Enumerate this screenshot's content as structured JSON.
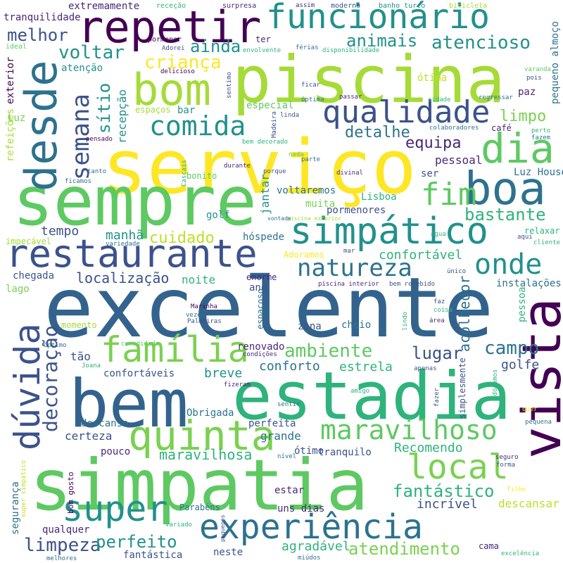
{
  "words": [
    {
      "text": "excelente",
      "color": "#33638d"
    },
    {
      "text": "serviço",
      "color": "#fde725"
    },
    {
      "text": "estadia",
      "color": "#2eb37c"
    },
    {
      "text": "simpatia",
      "color": "#5ec962"
    },
    {
      "text": "piscina",
      "color": "#a5db36"
    },
    {
      "text": "sempre",
      "color": "#5ec962"
    },
    {
      "text": "bem",
      "color": "#33638d"
    },
    {
      "text": "restaurante",
      "color": "#3b528b"
    },
    {
      "text": "experiência",
      "color": "#2c728e"
    },
    {
      "text": "vista",
      "color": "#440154"
    },
    {
      "text": "repetir",
      "color": "#440154"
    },
    {
      "text": "funcionário",
      "color": "#21918c"
    },
    {
      "text": "simpático",
      "color": "#21918c"
    },
    {
      "text": "dúvida",
      "color": "#3b528b"
    },
    {
      "text": "boa",
      "color": "#2c728e"
    },
    {
      "text": "desde",
      "color": "#2c728e"
    },
    {
      "text": "bom",
      "color": "#a5db36"
    },
    {
      "text": "quinta",
      "color": "#7ad151"
    },
    {
      "text": "dia",
      "color": "#5ec962"
    },
    {
      "text": "qualidade",
      "color": "#3b528b"
    },
    {
      "text": "família",
      "color": "#7ad151"
    },
    {
      "text": "local",
      "color": "#7ad151"
    },
    {
      "text": "super",
      "color": "#21918c"
    },
    {
      "text": "maravilhoso",
      "color": "#5ec962"
    },
    {
      "text": "comida",
      "color": "#21918c"
    },
    {
      "text": "natureza",
      "color": "#2c728e"
    },
    {
      "text": "onde",
      "color": "#21918c"
    },
    {
      "text": "semana",
      "color": "#3b528b"
    },
    {
      "text": "fim",
      "color": "#5ec962"
    },
    {
      "text": "decoração",
      "color": "#3b528b"
    },
    {
      "text": "voltar",
      "color": "#21918c"
    },
    {
      "text": "animais",
      "color": "#21918c"
    },
    {
      "text": "atencioso",
      "color": "#21918c"
    },
    {
      "text": "criança",
      "color": "#fde725"
    },
    {
      "text": "ainda",
      "color": "#21918c"
    },
    {
      "text": "melhor",
      "color": "#3b528b"
    },
    {
      "text": "sítio",
      "color": "#21918c"
    },
    {
      "text": "recepção",
      "color": "#21918c"
    },
    {
      "text": "equipa",
      "color": "#482878"
    },
    {
      "text": "detalhe",
      "color": "#2c728e"
    },
    {
      "text": "limpo",
      "color": "#7ad151"
    },
    {
      "text": "ambiente",
      "color": "#5ec962"
    },
    {
      "text": "campo",
      "color": "#2c728e"
    },
    {
      "text": "lugar",
      "color": "#3b528b"
    },
    {
      "text": "limpeza",
      "color": "#3b528b"
    },
    {
      "text": "perfeito",
      "color": "#21918c"
    },
    {
      "text": "atendimento",
      "color": "#7ad151"
    },
    {
      "text": "fantástico",
      "color": "#2eb37c"
    },
    {
      "text": "bastante",
      "color": "#2eb37c"
    },
    {
      "text": "cuidado",
      "color": "#bddf26"
    },
    {
      "text": "Recomendo",
      "color": "#2eb37c"
    },
    {
      "text": "maravilhosa",
      "color": "#2eb37c"
    },
    {
      "text": "localização",
      "color": "#3b528b"
    },
    {
      "text": "confortável",
      "color": "#2eb37c"
    },
    {
      "text": "acolhedor",
      "color": "#2c728e"
    },
    {
      "text": "golfe",
      "color": "#3b528b"
    },
    {
      "text": "conforto",
      "color": "#2c728e"
    },
    {
      "text": "estrela",
      "color": "#2eb37c"
    },
    {
      "text": "breve",
      "color": "#21918c"
    },
    {
      "text": "incrível",
      "color": "#3b528b"
    },
    {
      "text": "agradável",
      "color": "#2eb37c"
    },
    {
      "text": "descansar",
      "color": "#bddf26"
    },
    {
      "text": "tempo",
      "color": "#3b528b"
    },
    {
      "text": "manhã",
      "color": "#21918c"
    },
    {
      "text": "jantar",
      "color": "#21918c"
    },
    {
      "text": "pessoal",
      "color": "#482878"
    },
    {
      "text": "Luz House",
      "color": "#2c728e"
    },
    {
      "text": "Lisboa",
      "color": "#2eb37c"
    },
    {
      "text": "pormenores",
      "color": "#3b528b"
    },
    {
      "text": "voltaremos",
      "color": "#2c728e"
    },
    {
      "text": "muita",
      "color": "#7ad151"
    },
    {
      "text": "golf",
      "color": "#21918c"
    },
    {
      "text": "ser",
      "color": "#3b528b"
    },
    {
      "text": "bar",
      "color": "#21918c"
    },
    {
      "text": "especial",
      "color": "#5ec962"
    },
    {
      "text": "ótima",
      "color": "#bddf26"
    },
    {
      "text": "atenção",
      "color": "#21918c"
    },
    {
      "text": "paz",
      "color": "#482878"
    },
    {
      "text": "café",
      "color": "#482878"
    },
    {
      "text": "pequeno almoço",
      "color": "#2c728e"
    },
    {
      "text": "noite",
      "color": "#2eb37c"
    },
    {
      "text": "lago",
      "color": "#7ad151"
    },
    {
      "text": "chegada",
      "color": "#3b528b"
    },
    {
      "text": "ano",
      "color": "#3b528b"
    },
    {
      "text": "enorme",
      "color": "#482878"
    },
    {
      "text": "espaçoso",
      "color": "#2c728e"
    },
    {
      "text": "zona",
      "color": "#3b528b"
    },
    {
      "text": "cheio",
      "color": "#2c728e"
    },
    {
      "text": "renovado",
      "color": "#482878"
    },
    {
      "text": "segurança",
      "color": "#2c728e"
    },
    {
      "text": "certeza",
      "color": "#3b528b"
    },
    {
      "text": "grande",
      "color": "#2c728e"
    },
    {
      "text": "tranquilo",
      "color": "#3b528b"
    },
    {
      "text": "perfeita",
      "color": "#3b528b"
    },
    {
      "text": "simplesmente",
      "color": "#3b528b"
    },
    {
      "text": "descanso",
      "color": "#2c728e"
    },
    {
      "text": "pouco",
      "color": "#482878"
    },
    {
      "text": "confortáveis",
      "color": "#3b528b"
    },
    {
      "text": "tão",
      "color": "#3b528b"
    },
    {
      "text": "estar",
      "color": "#482878"
    },
    {
      "text": "uns dias",
      "color": "#482878"
    },
    {
      "text": "neste",
      "color": "#3b528b"
    },
    {
      "text": "qualquer",
      "color": "#482878"
    },
    {
      "text": "fantástica",
      "color": "#3b528b"
    },
    {
      "text": "Obrigada",
      "color": "#2c728e"
    },
    {
      "text": "ótimo",
      "color": "#3b528b"
    },
    {
      "text": "pessoa",
      "color": "#2eb37c"
    },
    {
      "text": "instalações",
      "color": "#2c728e"
    },
    {
      "text": "relaxar",
      "color": "#2eb37c"
    },
    {
      "text": "hóspede",
      "color": "#2c728e"
    },
    {
      "text": "impecável",
      "color": "#a5db36"
    },
    {
      "text": "tranquilidade",
      "color": "#482878"
    },
    {
      "text": "extremamente",
      "color": "#482878"
    },
    {
      "text": "exterior",
      "color": "#440154"
    },
    {
      "text": "refeições",
      "color": "#a5db36"
    },
    {
      "text": "Luz",
      "color": "#7ad151"
    },
    {
      "text": "espaços",
      "color": "#a5db36"
    },
    {
      "text": "bonito",
      "color": "#5ec962"
    },
    {
      "text": "ter",
      "color": "#482878"
    },
    {
      "text": "momento",
      "color": "#a5db36"
    },
    {
      "text": "Parabéns",
      "color": "#2c728e"
    },
    {
      "text": "cama",
      "color": "#482878"
    },
    {
      "text": "Adoramos",
      "color": "#fde725"
    },
    {
      "text": "bom gosto",
      "color": "#440154"
    },
    {
      "text": "ideal",
      "color": "#5ec962"
    },
    {
      "text": "pormenor",
      "color": "#440154"
    },
    {
      "text": "receção",
      "color": "#2eb37c"
    },
    {
      "text": "surpresa",
      "color": "#482878"
    },
    {
      "text": "assim",
      "color": "#482878"
    },
    {
      "text": "moderno",
      "color": "#3b528b"
    },
    {
      "text": "banho turco",
      "color": "#21918c"
    },
    {
      "text": "bicicleta",
      "color": "#a5db36"
    },
    {
      "text": "Adorei",
      "color": "#3b528b"
    },
    {
      "text": "envolvente",
      "color": "#2eb37c"
    },
    {
      "text": "férias",
      "color": "#2c728e"
    },
    {
      "text": "disponibilidade",
      "color": "#2eb37c"
    },
    {
      "text": "delicioso",
      "color": "#440154"
    },
    {
      "text": "sentimo",
      "color": "#3b528b"
    },
    {
      "text": "ficar",
      "color": "#3b528b"
    },
    {
      "text": "óptima",
      "color": "#2c728e"
    },
    {
      "text": "passar",
      "color": "#482878"
    },
    {
      "text": "cidade",
      "color": "#2eb37c"
    },
    {
      "text": "regressar",
      "color": "#2c728e"
    },
    {
      "text": "varanda",
      "color": "#5ec962"
    },
    {
      "text": "pois",
      "color": "#3b528b"
    },
    {
      "text": "linda",
      "color": "#3b528b"
    },
    {
      "text": "Madeira",
      "color": "#3b528b"
    },
    {
      "text": "colaboradores",
      "color": "#2c728e"
    },
    {
      "text": "perto",
      "color": "#2eb37c"
    },
    {
      "text": "fazem",
      "color": "#2c728e"
    },
    {
      "text": "pensado",
      "color": "#440154"
    },
    {
      "text": "bem decorado",
      "color": "#2eb37c"
    },
    {
      "text": "nada",
      "color": "#5ec962"
    },
    {
      "text": "parte",
      "color": "#2c728e"
    },
    {
      "text": "tanto",
      "color": "#2c728e"
    },
    {
      "text": "durante",
      "color": "#482878"
    },
    {
      "text": "porque",
      "color": "#3b528b"
    },
    {
      "text": "divinal",
      "color": "#482878"
    },
    {
      "text": "Cascais",
      "color": "#2eb37c"
    },
    {
      "text": "ficamos",
      "color": "#2c728e"
    },
    {
      "text": "piscina exterior",
      "color": "#a5db36"
    },
    {
      "text": "vontade",
      "color": "#2c728e"
    },
    {
      "text": "água",
      "color": "#2eb37c"
    },
    {
      "text": "aqui",
      "color": "#3b528b"
    },
    {
      "text": "cliente",
      "color": "#2eb37c"
    },
    {
      "text": "variedade",
      "color": "#2c728e"
    },
    {
      "text": "mar",
      "color": "#3b528b"
    },
    {
      "text": "único",
      "color": "#3b528b"
    },
    {
      "text": "piscina interior",
      "color": "#482878"
    },
    {
      "text": "bem recebido",
      "color": "#3b528b"
    },
    {
      "text": "Marinha",
      "color": "#440154"
    },
    {
      "text": "vezes",
      "color": "#2c728e"
    },
    {
      "text": "Palmeiras",
      "color": "#3b528b"
    },
    {
      "text": "faz",
      "color": "#3b528b"
    },
    {
      "text": "coisa",
      "color": "#2eb37c"
    },
    {
      "text": "lindo",
      "color": "#2eb37c"
    },
    {
      "text": "área",
      "color": "#482878"
    },
    {
      "text": "óptimo",
      "color": "#2c728e"
    },
    {
      "text": "comodidade",
      "color": "#5ec962"
    },
    {
      "text": "condições",
      "color": "#482878"
    },
    {
      "text": "apenas",
      "color": "#3b528b"
    },
    {
      "text": "Joana",
      "color": "#2eb37c"
    },
    {
      "text": "fizeram",
      "color": "#482878"
    },
    {
      "text": "amigo",
      "color": "#2eb37c"
    },
    {
      "text": "sentir",
      "color": "#2c728e"
    },
    {
      "text": "fazer",
      "color": "#3b528b"
    },
    {
      "text": "Adóramos",
      "color": "#2eb37c"
    },
    {
      "text": "quer",
      "color": "#fde725"
    },
    {
      "text": "pequena",
      "color": "#2c728e"
    },
    {
      "text": "nível",
      "color": "#2c728e"
    },
    {
      "text": "seguro",
      "color": "#482878"
    },
    {
      "text": "forma",
      "color": "#3b528b"
    },
    {
      "text": "filho",
      "color": "#fde725"
    },
    {
      "text": "super simpático",
      "color": "#bddf26"
    },
    {
      "text": "pequenos",
      "color": "#3b528b"
    },
    {
      "text": "variado",
      "color": "#2eb37c"
    },
    {
      "text": "melhores",
      "color": "#2c728e"
    },
    {
      "text": "miúdos",
      "color": "#2c728e"
    },
    {
      "text": "excelência",
      "color": "#2eb37c"
    }
  ]
}
